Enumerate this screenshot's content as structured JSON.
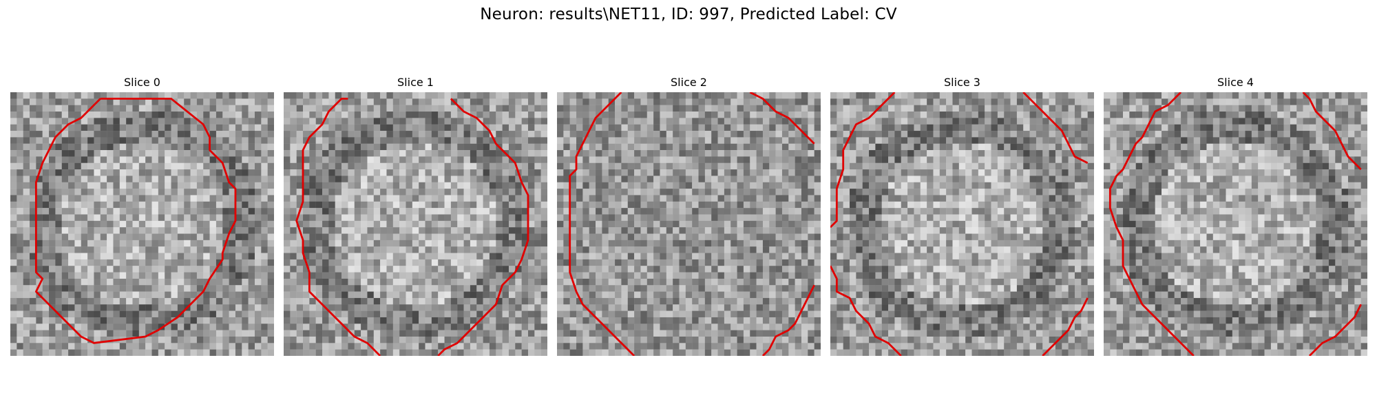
{
  "figure": {
    "title": "Neuron: results\\NET11, ID: 997, Predicted Label: CV"
  },
  "contour_color": "#e00000",
  "slices": [
    {
      "label": "Slice 0",
      "seed": 11,
      "dark_rim": true,
      "contours": [
        [
          [
            14,
            1
          ],
          [
            25,
            1
          ],
          [
            25,
            1
          ],
          [
            30,
            5
          ],
          [
            31,
            7
          ],
          [
            31,
            9
          ],
          [
            33,
            11
          ],
          [
            34,
            14
          ],
          [
            35,
            15
          ],
          [
            35,
            20
          ],
          [
            34,
            22
          ],
          [
            33,
            25
          ],
          [
            33,
            26
          ],
          [
            31,
            29
          ],
          [
            30,
            31
          ],
          [
            28,
            33
          ],
          [
            26,
            35
          ],
          [
            23,
            37
          ],
          [
            21,
            38
          ],
          [
            13,
            39
          ],
          [
            11,
            38
          ],
          [
            8,
            35
          ],
          [
            6,
            33
          ],
          [
            4,
            31
          ],
          [
            5,
            29
          ],
          [
            4,
            28
          ],
          [
            4,
            25
          ],
          [
            4,
            22
          ],
          [
            4,
            14
          ],
          [
            5,
            11
          ],
          [
            6,
            9
          ],
          [
            7,
            7
          ],
          [
            9,
            5
          ],
          [
            11,
            4
          ],
          [
            13,
            2
          ],
          [
            14,
            1
          ]
        ]
      ]
    },
    {
      "label": "Slice 1",
      "seed": 27,
      "dark_rim": true,
      "contours": [
        [
          [
            10,
            1
          ],
          [
            9,
            1
          ],
          [
            7,
            3
          ],
          [
            6,
            5
          ],
          [
            4,
            7
          ],
          [
            3,
            9
          ],
          [
            3,
            11
          ],
          [
            3,
            14
          ],
          [
            3,
            17
          ],
          [
            2,
            20
          ],
          [
            3,
            23
          ],
          [
            3,
            25
          ],
          [
            4,
            28
          ],
          [
            4,
            29
          ],
          [
            4,
            31
          ],
          [
            6,
            33
          ],
          [
            8,
            35
          ],
          [
            9,
            36
          ],
          [
            11,
            38
          ],
          [
            13,
            39
          ],
          [
            14,
            40
          ],
          [
            15,
            41
          ]
        ],
        [
          [
            26,
            1
          ],
          [
            28,
            3
          ],
          [
            30,
            4
          ],
          [
            32,
            6
          ],
          [
            33,
            8
          ],
          [
            34,
            9
          ],
          [
            36,
            11
          ],
          [
            37,
            14
          ],
          [
            38,
            16
          ],
          [
            38,
            19
          ],
          [
            38,
            23
          ],
          [
            37,
            26
          ],
          [
            36,
            28
          ],
          [
            34,
            30
          ],
          [
            33,
            33
          ],
          [
            31,
            35
          ],
          [
            30,
            36
          ],
          [
            28,
            38
          ],
          [
            27,
            39
          ],
          [
            25,
            40
          ],
          [
            24,
            41
          ]
        ]
      ]
    },
    {
      "label": "Slice 2",
      "seed": 53,
      "dark_rim": false,
      "contours": [
        [
          [
            10,
            0
          ],
          [
            8,
            2
          ],
          [
            6,
            4
          ],
          [
            5,
            6
          ],
          [
            4,
            8
          ],
          [
            3,
            10
          ],
          [
            3,
            12
          ],
          [
            2,
            13
          ],
          [
            2,
            16
          ],
          [
            2,
            20
          ],
          [
            2,
            25
          ],
          [
            2,
            28
          ],
          [
            3,
            31
          ],
          [
            4,
            33
          ],
          [
            6,
            35
          ],
          [
            7,
            36
          ],
          [
            9,
            38
          ],
          [
            11,
            40
          ],
          [
            12,
            41
          ]
        ],
        [
          [
            30,
            0
          ],
          [
            32,
            1
          ],
          [
            34,
            3
          ],
          [
            36,
            4
          ],
          [
            38,
            6
          ],
          [
            40,
            8
          ]
        ],
        [
          [
            40,
            30
          ],
          [
            39,
            32
          ],
          [
            38,
            34
          ],
          [
            37,
            36
          ],
          [
            36,
            37
          ],
          [
            34,
            38
          ],
          [
            33,
            40
          ],
          [
            32,
            41
          ]
        ]
      ]
    },
    {
      "label": "Slice 3",
      "seed": 79,
      "dark_rim": true,
      "contours": [
        [
          [
            10,
            0
          ],
          [
            8,
            2
          ],
          [
            6,
            4
          ],
          [
            4,
            5
          ],
          [
            3,
            7
          ],
          [
            2,
            9
          ],
          [
            2,
            12
          ],
          [
            1,
            15
          ],
          [
            1,
            18
          ],
          [
            1,
            20
          ],
          [
            0,
            21
          ]
        ],
        [
          [
            0,
            27
          ],
          [
            1,
            29
          ],
          [
            1,
            31
          ],
          [
            3,
            32
          ],
          [
            4,
            34
          ],
          [
            6,
            36
          ],
          [
            7,
            38
          ],
          [
            9,
            39
          ],
          [
            10,
            40
          ],
          [
            11,
            41
          ]
        ],
        [
          [
            30,
            0
          ],
          [
            32,
            2
          ],
          [
            34,
            4
          ],
          [
            36,
            6
          ],
          [
            37,
            8
          ],
          [
            38,
            10
          ],
          [
            40,
            11
          ]
        ],
        [
          [
            40,
            32
          ],
          [
            39,
            34
          ],
          [
            38,
            35
          ],
          [
            37,
            37
          ],
          [
            36,
            38
          ],
          [
            34,
            40
          ],
          [
            33,
            41
          ]
        ]
      ]
    },
    {
      "label": "Slice 4",
      "seed": 97,
      "dark_rim": true,
      "contours": [
        [
          [
            12,
            0
          ],
          [
            10,
            2
          ],
          [
            8,
            3
          ],
          [
            7,
            5
          ],
          [
            6,
            7
          ],
          [
            5,
            8
          ],
          [
            4,
            10
          ],
          [
            3,
            12
          ],
          [
            2,
            13
          ],
          [
            1,
            15
          ],
          [
            1,
            18
          ],
          [
            2,
            21
          ],
          [
            3,
            23
          ],
          [
            3,
            27
          ],
          [
            4,
            29
          ],
          [
            5,
            31
          ],
          [
            6,
            33
          ],
          [
            8,
            35
          ],
          [
            9,
            36
          ],
          [
            11,
            38
          ],
          [
            12,
            39
          ],
          [
            13,
            40
          ],
          [
            14,
            41
          ]
        ],
        [
          [
            31,
            0
          ],
          [
            32,
            1
          ],
          [
            33,
            3
          ],
          [
            34,
            4
          ],
          [
            36,
            6
          ],
          [
            37,
            8
          ],
          [
            38,
            10
          ],
          [
            39,
            11
          ],
          [
            40,
            12
          ]
        ],
        [
          [
            40,
            33
          ],
          [
            39,
            35
          ],
          [
            37,
            37
          ],
          [
            36,
            38
          ],
          [
            34,
            39
          ],
          [
            33,
            40
          ],
          [
            32,
            41
          ]
        ]
      ]
    }
  ]
}
